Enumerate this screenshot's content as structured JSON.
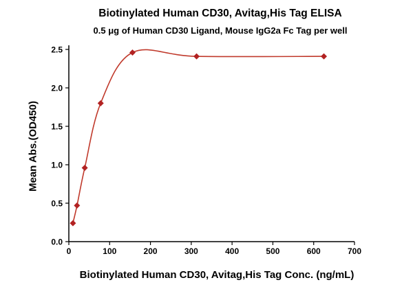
{
  "chart_data": {
    "type": "scatter",
    "title": "Biotinylated Human CD30, Avitag,His Tag ELISA",
    "subtitle": "0.5 μg of Human CD30 Ligand, Mouse IgG2a Fc Tag per well",
    "xlabel": "Biotinylated Human CD30, Avitag,His Tag Conc. (ng/mL)",
    "ylabel": "Mean Abs.(OD450)",
    "x": [
      10,
      20,
      39,
      78,
      156,
      313,
      625
    ],
    "y": [
      0.24,
      0.47,
      0.96,
      1.8,
      2.46,
      2.41,
      2.41
    ],
    "fit": "sigmoidal dose-response curve through points",
    "xlim": [
      0,
      700
    ],
    "ylim": [
      0,
      2.5
    ],
    "xticks": [
      0,
      100,
      200,
      300,
      400,
      500,
      600,
      700
    ],
    "yticks": [
      0,
      0.5,
      1,
      1.5,
      2,
      2.5
    ],
    "grid": false,
    "legend": null,
    "marker": "diamond",
    "marker_color": "#b22222",
    "line_color": "#c0392b",
    "axis_color": "#000000",
    "text_color": "#000000"
  }
}
